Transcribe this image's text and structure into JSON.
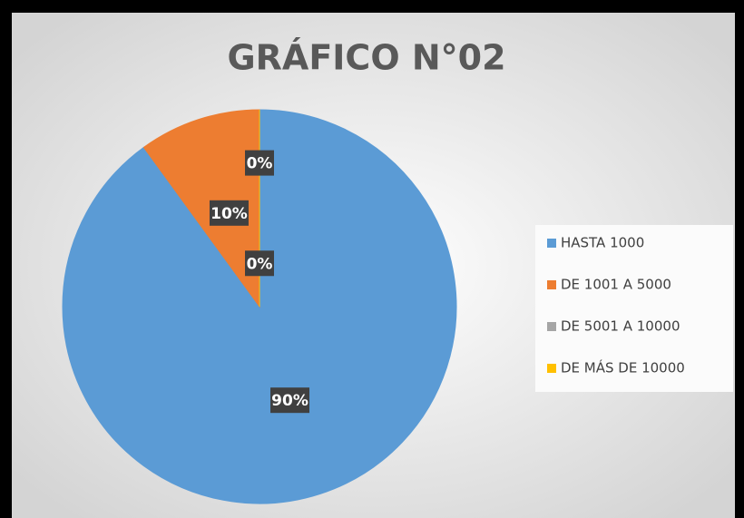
{
  "chart_data": {
    "type": "pie",
    "title": "GRÁFICO N°02",
    "categories": [
      "HASTA 1000",
      "DE 1001 A 5000",
      "DE 5001 A 10000",
      "DE MÁS DE 10000"
    ],
    "values": [
      90,
      10,
      0,
      0
    ],
    "value_labels": [
      "90%",
      "10%",
      "0%",
      "0%"
    ],
    "colors": [
      "#5b9bd5",
      "#ed7d31",
      "#a5a5a5",
      "#ffc000"
    ],
    "legend": "right"
  }
}
